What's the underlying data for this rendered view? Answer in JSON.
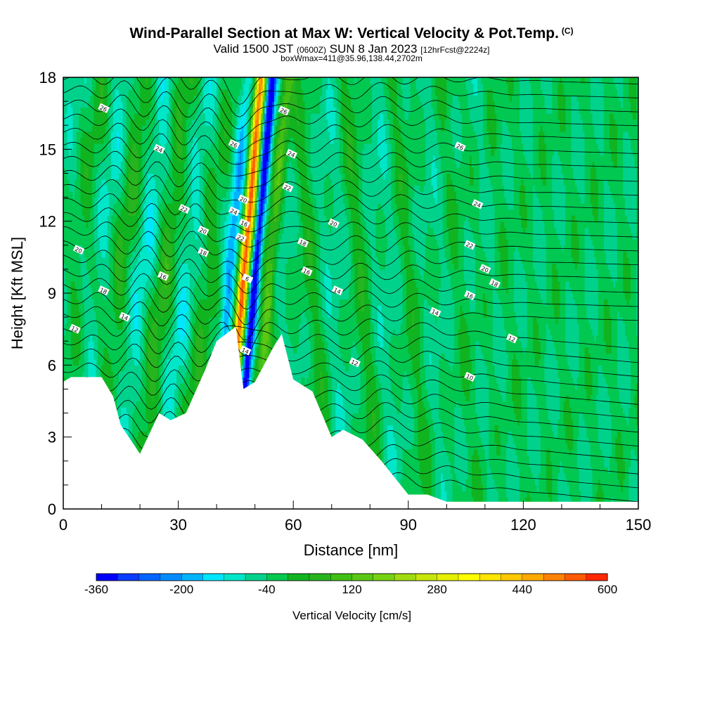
{
  "title": {
    "main": "Wind-Parallel Section at Max W: Vertical Velocity & Pot.Temp.",
    "copyright": "(C)",
    "valid_a": "Valid 1500 JST",
    "valid_b": "(0600Z)",
    "valid_c": "SUN 8 Jan 2023",
    "valid_d": "[12hrFcst@2224z]",
    "box": "boxWmax=411@35.96,138.44,2702m"
  },
  "chart_data": {
    "type": "heatmap",
    "title": "Wind-Parallel Section at Max W: Vertical Velocity & Pot.Temp.",
    "xlabel": "Distance [nm]",
    "ylabel": "Height [Kft MSL]",
    "xlim": [
      0,
      150
    ],
    "ylim": [
      0,
      18
    ],
    "x_ticks": [
      "0",
      "30",
      "60",
      "90",
      "120",
      "150"
    ],
    "y_ticks": [
      "0",
      "3",
      "6",
      "9",
      "12",
      "15",
      "18"
    ],
    "colorbar": {
      "label": "Vertical Velocity [cm/s]",
      "tick_labels": [
        "-360",
        "-200",
        "-40",
        "120",
        "280",
        "440",
        "600"
      ],
      "range": [
        -360,
        600
      ],
      "step": 40,
      "colors": [
        "#0000ff",
        "#0a3cff",
        "#0064ff",
        "#008cff",
        "#00b4ff",
        "#00e6ff",
        "#00e6c8",
        "#00d28c",
        "#00c850",
        "#10b420",
        "#28b41e",
        "#40c014",
        "#5ac814",
        "#78d214",
        "#a0dc10",
        "#c8e60a",
        "#e6f000",
        "#ffff00",
        "#ffe600",
        "#ffc800",
        "#ffaa00",
        "#ff8200",
        "#ff5a00",
        "#ff2800",
        "#e60000",
        "#c80028",
        "#a0005a",
        "#800080"
      ]
    },
    "terrain_profile": {
      "x": [
        0,
        2,
        10,
        13,
        15,
        20,
        25,
        28,
        32,
        37,
        40,
        45,
        47,
        50,
        55,
        57,
        60,
        65,
        70,
        73,
        78,
        83,
        90,
        95,
        100,
        150
      ],
      "y": [
        5.3,
        5.5,
        5.5,
        4.7,
        3.5,
        2.3,
        4.0,
        3.7,
        4.0,
        5.8,
        7.0,
        7.6,
        5.0,
        5.3,
        6.8,
        7.3,
        5.4,
        4.9,
        3.0,
        3.3,
        2.9,
        2.0,
        0.6,
        0.6,
        0.3,
        0.3
      ]
    },
    "theta_contour_labels": [
      {
        "x": 10.5,
        "y": 16.7,
        "text": "26"
      },
      {
        "x": 25,
        "y": 15.0,
        "text": "24"
      },
      {
        "x": 31.5,
        "y": 12.5,
        "text": "22"
      },
      {
        "x": 36.5,
        "y": 11.6,
        "text": "20"
      },
      {
        "x": 36.5,
        "y": 10.7,
        "text": "18"
      },
      {
        "x": 26,
        "y": 9.7,
        "text": "16"
      },
      {
        "x": 16,
        "y": 8.0,
        "text": "14"
      },
      {
        "x": 3,
        "y": 7.5,
        "text": "12"
      },
      {
        "x": 4,
        "y": 10.8,
        "text": "20"
      },
      {
        "x": 10.5,
        "y": 9.1,
        "text": "18"
      },
      {
        "x": 44.5,
        "y": 15.2,
        "text": "26"
      },
      {
        "x": 44.5,
        "y": 12.4,
        "text": "24"
      },
      {
        "x": 47.0,
        "y": 12.9,
        "text": "20"
      },
      {
        "x": 47.2,
        "y": 11.9,
        "text": "16"
      },
      {
        "x": 46.3,
        "y": 11.3,
        "text": "22"
      },
      {
        "x": 48.0,
        "y": 9.6,
        "text": "6"
      },
      {
        "x": 47.5,
        "y": 6.6,
        "text": "14"
      },
      {
        "x": 57.5,
        "y": 16.6,
        "text": "26"
      },
      {
        "x": 59.5,
        "y": 14.8,
        "text": "24"
      },
      {
        "x": 58.5,
        "y": 13.4,
        "text": "22"
      },
      {
        "x": 70.5,
        "y": 11.9,
        "text": "20"
      },
      {
        "x": 62.5,
        "y": 11.1,
        "text": "18"
      },
      {
        "x": 63.5,
        "y": 9.9,
        "text": "16"
      },
      {
        "x": 71.5,
        "y": 9.1,
        "text": "14"
      },
      {
        "x": 76,
        "y": 6.1,
        "text": "12"
      },
      {
        "x": 103.5,
        "y": 15.1,
        "text": "26"
      },
      {
        "x": 108,
        "y": 12.7,
        "text": "24"
      },
      {
        "x": 106,
        "y": 11.0,
        "text": "22"
      },
      {
        "x": 110,
        "y": 10.0,
        "text": "20"
      },
      {
        "x": 112.5,
        "y": 9.4,
        "text": "18"
      },
      {
        "x": 106,
        "y": 8.9,
        "text": "16"
      },
      {
        "x": 97,
        "y": 8.2,
        "text": "14"
      },
      {
        "x": 117,
        "y": 7.1,
        "text": "12"
      },
      {
        "x": 106,
        "y": 5.5,
        "text": "10"
      }
    ]
  }
}
